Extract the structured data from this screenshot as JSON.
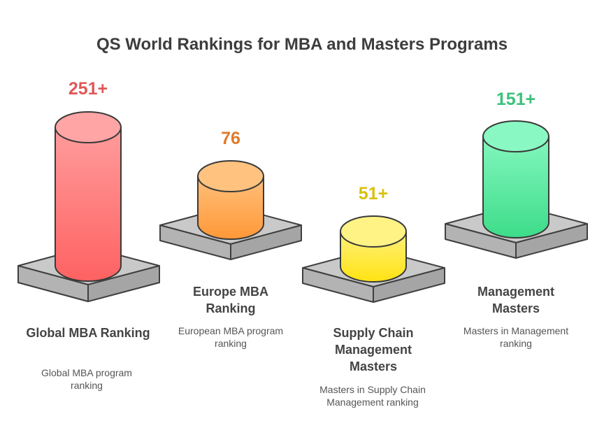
{
  "title": "QS World Rankings for MBA and Masters Programs",
  "items": [
    {
      "value": "251+",
      "label": "Global MBA Ranking",
      "description": "Global MBA program ranking",
      "color": "#e55a5a",
      "top": "#ff9f9f",
      "bottom": "#ff6464"
    },
    {
      "value": "76",
      "label": "Europe MBA Ranking",
      "description": "European MBA program ranking",
      "color": "#e07a2e",
      "top": "#ffc27a",
      "bottom": "#ff9a3c"
    },
    {
      "value": "51+",
      "label": "Supply Chain Management Masters",
      "description": "Masters in Supply Chain Management ranking",
      "color": "#d9c313",
      "top": "#fff07a",
      "bottom": "#ffe51c"
    },
    {
      "value": "151+",
      "label": "Management Masters",
      "description": "Masters in Management ranking",
      "color": "#3cc27a",
      "top": "#86f7bf",
      "bottom": "#40de8c"
    }
  ]
}
